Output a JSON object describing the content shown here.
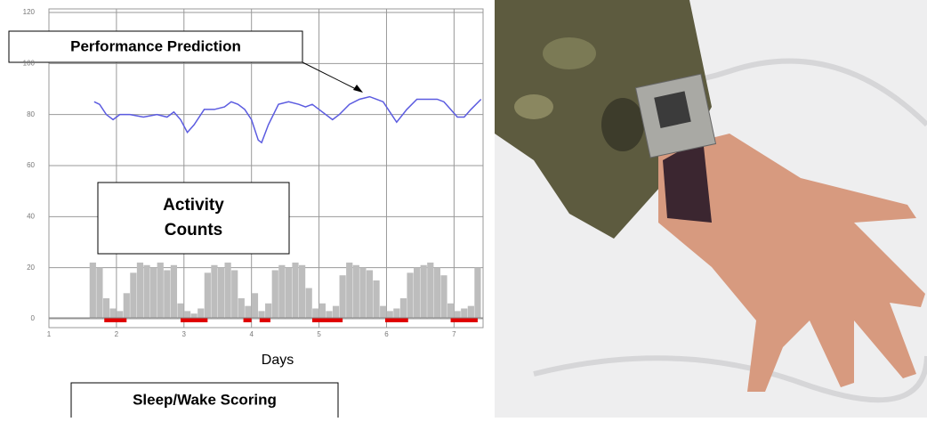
{
  "chart_data": {
    "type": "line",
    "x_label": "Days",
    "xlim": [
      1,
      7.43
    ],
    "ylim": [
      -3.5,
      121.4
    ],
    "xticks": [
      1,
      2,
      3,
      4,
      5,
      6,
      7
    ],
    "yticks": [
      0,
      20,
      40,
      60,
      80,
      100,
      120
    ],
    "grid": true,
    "annotations": [
      "Performance Prediction",
      "Activity Counts",
      "Sleep/Wake Scoring"
    ],
    "series": [
      {
        "kind": "line",
        "color": "#5b5be0",
        "x": [
          1.67,
          1.75,
          1.85,
          1.95,
          2.05,
          2.2,
          2.4,
          2.6,
          2.75,
          2.85,
          2.95,
          3.05,
          3.15,
          3.3,
          3.45,
          3.6,
          3.7,
          3.8,
          3.9,
          4.0,
          4.1,
          4.15,
          4.25,
          4.4,
          4.55,
          4.7,
          4.8,
          4.9,
          5.0,
          5.1,
          5.2,
          5.3,
          5.45,
          5.6,
          5.75,
          5.85,
          5.95,
          6.05,
          6.15,
          6.3,
          6.45,
          6.6,
          6.75,
          6.85,
          6.95,
          7.05,
          7.15,
          7.25,
          7.4
        ],
        "values": [
          85,
          84,
          80,
          78,
          80,
          80,
          79,
          80,
          79,
          81,
          78,
          73,
          76,
          82,
          82,
          83,
          85,
          84,
          82,
          78,
          70,
          69,
          76,
          84,
          85,
          84,
          83,
          84,
          82,
          80,
          78,
          80,
          84,
          86,
          87,
          86,
          85,
          81,
          77,
          82,
          86,
          86,
          86,
          85,
          82,
          79,
          79,
          82,
          86
        ]
      },
      {
        "kind": "bar",
        "color": "#bdbdbd",
        "x": [
          1.65,
          1.75,
          1.85,
          1.95,
          2.05,
          2.15,
          2.25,
          2.35,
          2.45,
          2.55,
          2.65,
          2.75,
          2.85,
          2.95,
          3.05,
          3.15,
          3.25,
          3.35,
          3.45,
          3.55,
          3.65,
          3.75,
          3.85,
          3.95,
          4.05,
          4.15,
          4.25,
          4.35,
          4.45,
          4.55,
          4.65,
          4.75,
          4.85,
          4.95,
          5.05,
          5.15,
          5.25,
          5.35,
          5.45,
          5.55,
          5.65,
          5.75,
          5.85,
          5.95,
          6.05,
          6.15,
          6.25,
          6.35,
          6.45,
          6.55,
          6.65,
          6.75,
          6.85,
          6.95,
          7.05,
          7.15,
          7.25,
          7.35
        ],
        "values": [
          22,
          20,
          8,
          4,
          3,
          10,
          18,
          22,
          21,
          20,
          22,
          19,
          21,
          6,
          3,
          2,
          4,
          18,
          21,
          20,
          22,
          19,
          8,
          5,
          10,
          3,
          6,
          19,
          21,
          20,
          22,
          21,
          12,
          4,
          6,
          3,
          5,
          17,
          22,
          21,
          20,
          19,
          15,
          5,
          3,
          4,
          8,
          18,
          20,
          21,
          22,
          20,
          17,
          6,
          3,
          4,
          5,
          20
        ]
      }
    ],
    "sleep_intervals": {
      "color": "#e00000",
      "start": [
        1.82,
        2.95,
        3.88,
        4.12,
        4.9,
        5.98,
        6.95
      ],
      "end": [
        2.15,
        3.35,
        4.0,
        4.28,
        5.35,
        6.32,
        7.35
      ]
    }
  }
}
